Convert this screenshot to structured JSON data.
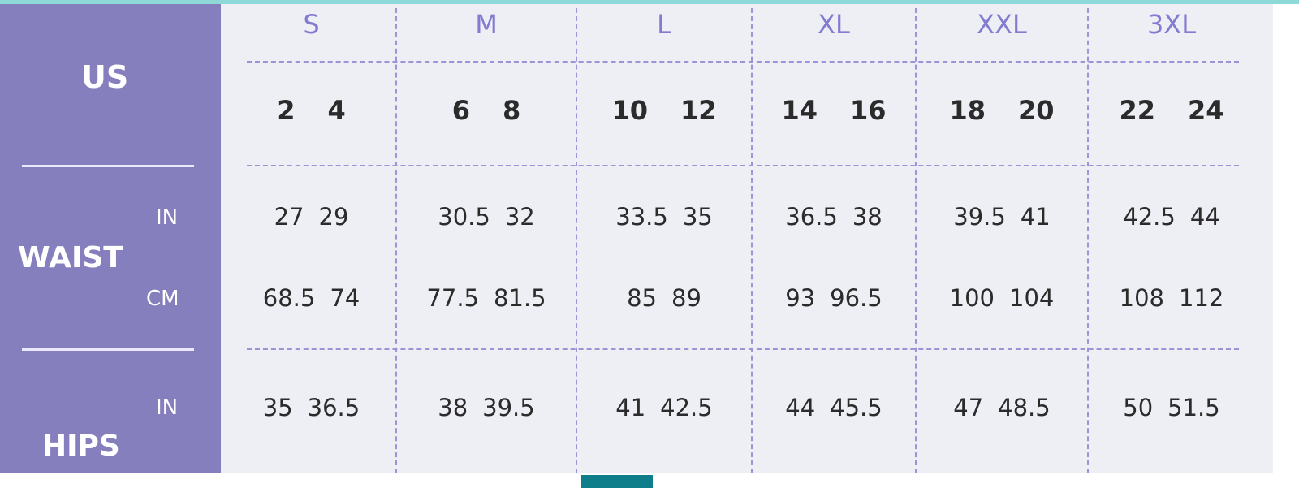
{
  "colors": {
    "panel": "#857fbd",
    "background": "#eeeef5",
    "size_label": "#837bd0",
    "accent": "#0e7f8a"
  },
  "labels": {
    "us": "US",
    "waist": "WAIST",
    "hips": "HIPS",
    "in": "IN",
    "cm": "CM"
  },
  "columns": [
    {
      "size": "S",
      "us": [
        "2",
        "4"
      ],
      "waist_in": [
        "27",
        "29"
      ],
      "waist_cm": [
        "68.5",
        "74"
      ],
      "hips_in": [
        "35",
        "36.5"
      ]
    },
    {
      "size": "M",
      "us": [
        "6",
        "8"
      ],
      "waist_in": [
        "30.5",
        "32"
      ],
      "waist_cm": [
        "77.5",
        "81.5"
      ],
      "hips_in": [
        "38",
        "39.5"
      ]
    },
    {
      "size": "L",
      "us": [
        "10",
        "12"
      ],
      "waist_in": [
        "33.5",
        "35"
      ],
      "waist_cm": [
        "85",
        "89"
      ],
      "hips_in": [
        "41",
        "42.5"
      ]
    },
    {
      "size": "XL",
      "us": [
        "14",
        "16"
      ],
      "waist_in": [
        "36.5",
        "38"
      ],
      "waist_cm": [
        "93",
        "96.5"
      ],
      "hips_in": [
        "44",
        "45.5"
      ]
    },
    {
      "size": "XXL",
      "us": [
        "18",
        "20"
      ],
      "waist_in": [
        "39.5",
        "41"
      ],
      "waist_cm": [
        "100",
        "104"
      ],
      "hips_in": [
        "47",
        "48.5"
      ]
    },
    {
      "size": "3XL",
      "us": [
        "22",
        "24"
      ],
      "waist_in": [
        "42.5",
        "44"
      ],
      "waist_cm": [
        "108",
        "112"
      ],
      "hips_in": [
        "50",
        "51.5"
      ]
    }
  ]
}
